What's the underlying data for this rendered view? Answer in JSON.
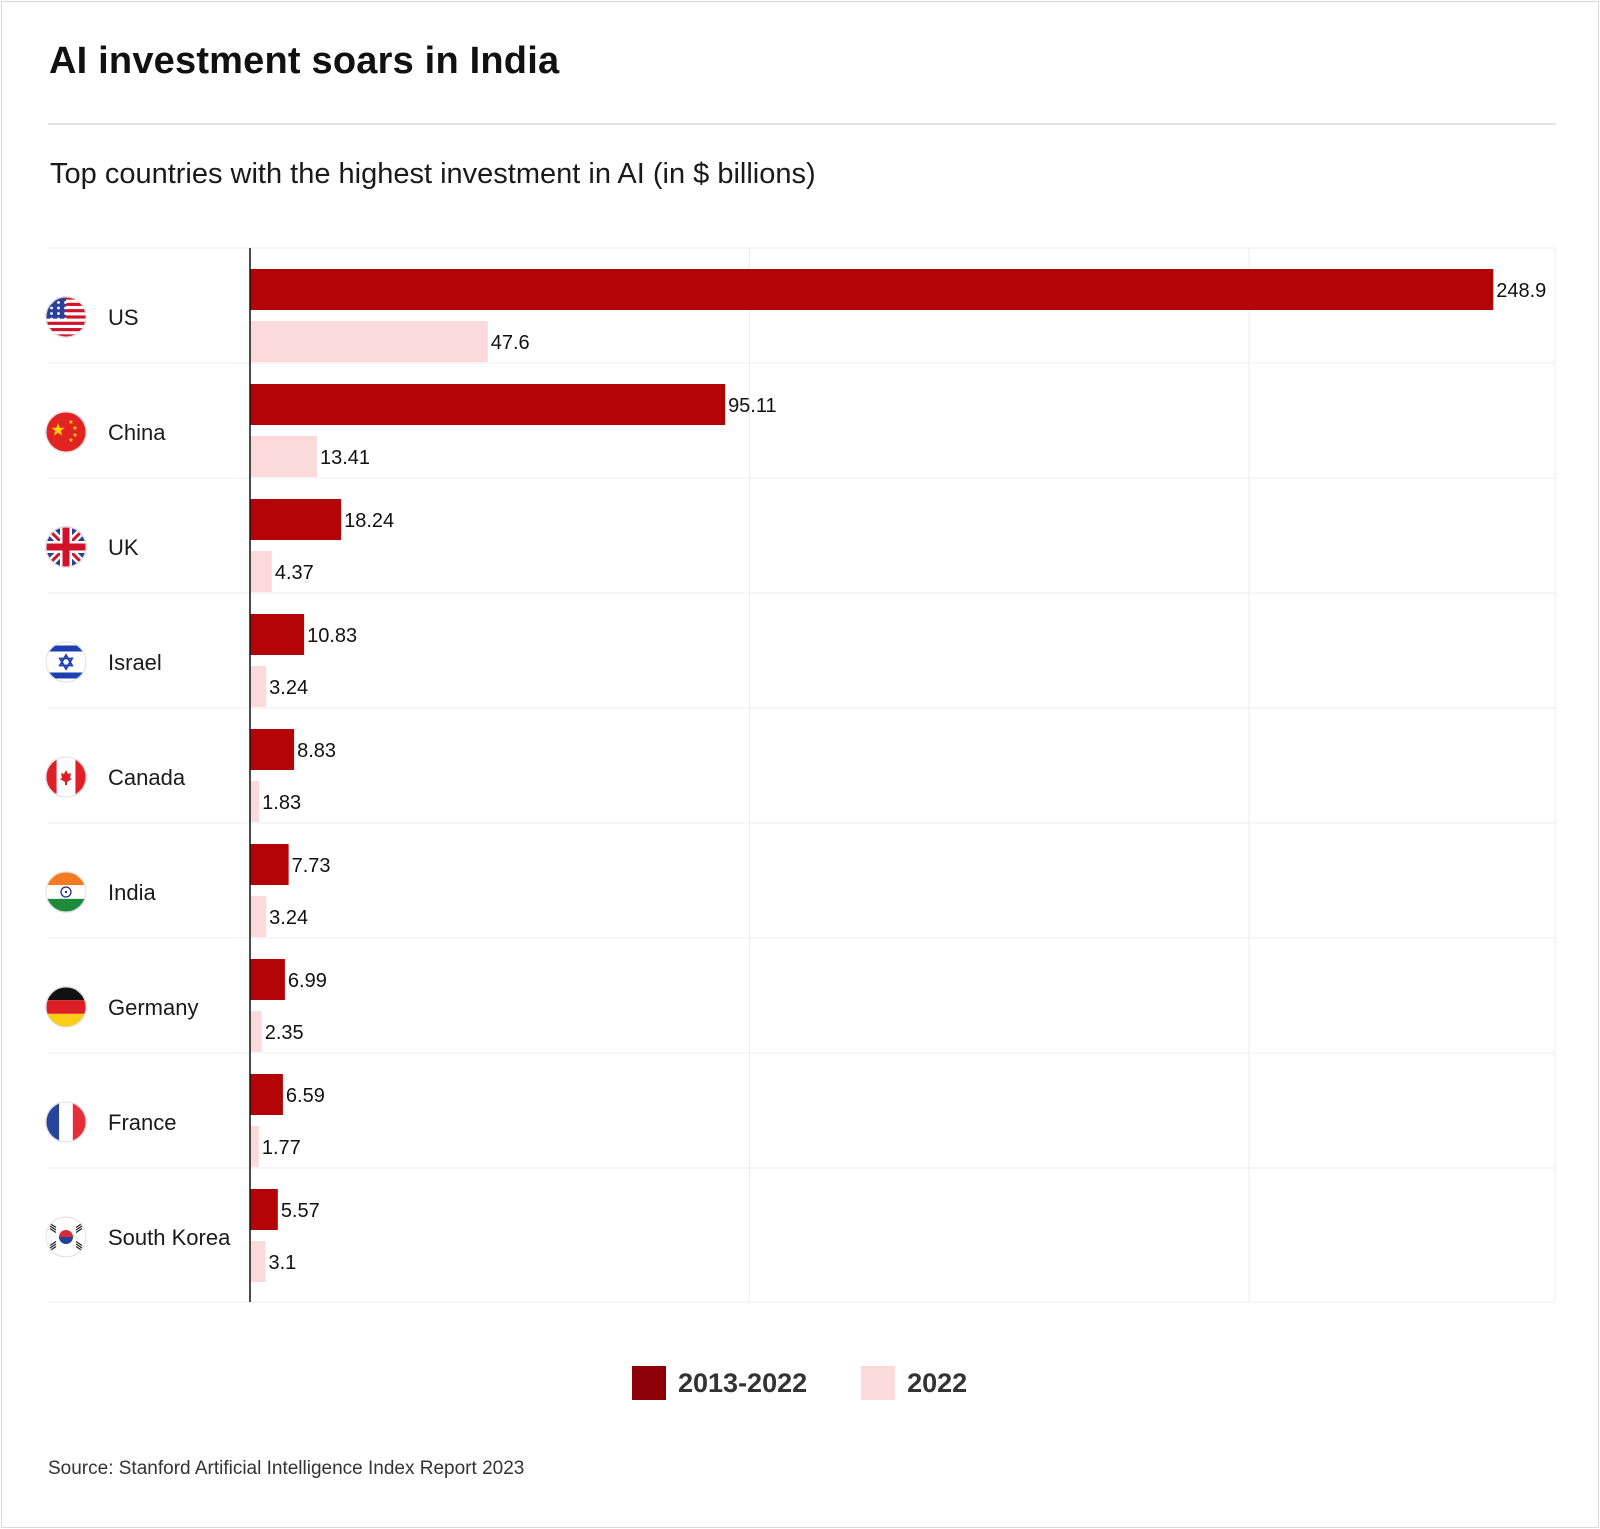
{
  "title": "AI investment soars in India",
  "subtitle": "Top countries with the highest investment in AI (in $ billions)",
  "source": "Source: Stanford Artificial Intelligence Index Report 2023",
  "colors": {
    "series_total": "#b30408",
    "series_2022": "#fcdadc",
    "legend_total": "#8e0007",
    "legend_2022": "#fcdadc",
    "grid": "#ececec",
    "axis": "#111111"
  },
  "chart_data": {
    "type": "bar",
    "orientation": "horizontal",
    "categories": [
      "US",
      "China",
      "UK",
      "Israel",
      "Canada",
      "India",
      "Germany",
      "France",
      "South Korea"
    ],
    "category_icons": [
      "us-flag-icon",
      "china-flag-icon",
      "uk-flag-icon",
      "israel-flag-icon",
      "canada-flag-icon",
      "india-flag-icon",
      "germany-flag-icon",
      "france-flag-icon",
      "south-korea-flag-icon"
    ],
    "series": [
      {
        "name": "2013-2022",
        "values": [
          248.9,
          95.11,
          18.24,
          10.83,
          8.83,
          7.73,
          6.99,
          6.59,
          5.57
        ],
        "labels": [
          "248.9",
          "95.11",
          "18.24",
          "10.83",
          "8.83",
          "7.73",
          "6.99",
          "6.59",
          "5.57"
        ]
      },
      {
        "name": "2022",
        "values": [
          47.6,
          13.41,
          4.37,
          3.24,
          1.83,
          3.24,
          2.35,
          1.77,
          3.1
        ],
        "labels": [
          "47.6",
          "13.41",
          "4.37",
          "3.24",
          "1.83",
          "3.24",
          "2.35",
          "1.77",
          "3.1"
        ]
      }
    ],
    "xlim": [
      0,
      260
    ],
    "grid": true,
    "legend_position": "bottom-center",
    "data_labels": true
  }
}
